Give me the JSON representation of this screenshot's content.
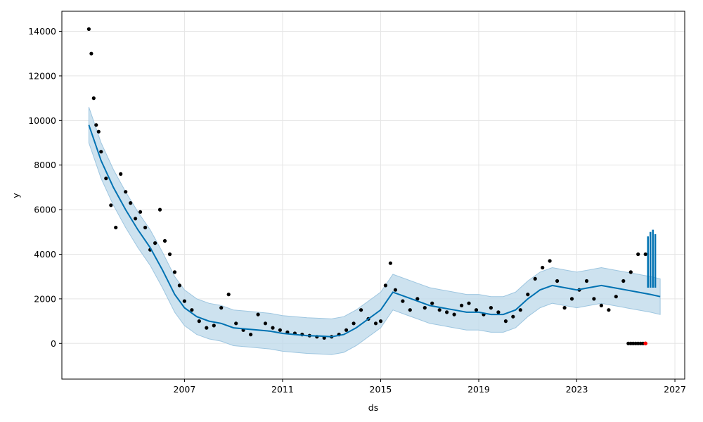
{
  "chart_data": {
    "type": "scatter",
    "title": "",
    "xlabel": "ds",
    "ylabel": "y",
    "xlim": [
      2002.0,
      2027.4
    ],
    "ylim": [
      -1600,
      14900
    ],
    "x_ticks": [
      2007,
      2011,
      2015,
      2019,
      2023,
      2027
    ],
    "x_tick_labels": [
      "2007",
      "2011",
      "2015",
      "2019",
      "2023",
      "2027"
    ],
    "y_ticks": [
      0,
      2000,
      4000,
      6000,
      8000,
      10000,
      12000,
      14000
    ],
    "y_tick_labels": [
      "0",
      "2000",
      "4000",
      "6000",
      "8000",
      "10000",
      "12000",
      "14000"
    ],
    "grid": true,
    "legend": "none",
    "colors": {
      "observed": "#000000",
      "forecast": "#0072b2",
      "interval": "#bcd8ea",
      "highlight": "#ff0000",
      "grid": "#e5e5e5"
    },
    "series": [
      {
        "type": "scatter",
        "x": [
          2003.1,
          2003.2,
          2003.3,
          2003.4,
          2003.5,
          2003.6,
          2003.8,
          2004.0,
          2004.2,
          2004.4,
          2004.6,
          2004.8,
          2005.0,
          2005.2,
          2005.4,
          2005.6,
          2005.8,
          2006.0,
          2006.2,
          2006.4,
          2006.6,
          2006.8,
          2007.0,
          2007.3,
          2007.6,
          2007.9,
          2008.2,
          2008.5,
          2008.8,
          2009.1,
          2009.4,
          2009.7,
          2010.0,
          2010.3,
          2010.6,
          2010.9,
          2011.2,
          2011.5,
          2011.8,
          2012.1,
          2012.4,
          2012.7,
          2013.0,
          2013.3,
          2013.6,
          2013.9,
          2014.2,
          2014.5,
          2014.8,
          2015.0,
          2015.2,
          2015.4,
          2015.6,
          2015.9,
          2016.2,
          2016.5,
          2016.8,
          2017.1,
          2017.4,
          2017.7,
          2018.0,
          2018.3,
          2018.6,
          2018.9,
          2019.2,
          2019.5,
          2019.8,
          2020.1,
          2020.4,
          2020.7,
          2021.0,
          2021.3,
          2021.6,
          2021.9,
          2022.2,
          2022.5,
          2022.8,
          2023.1,
          2023.4,
          2023.7,
          2024.0,
          2024.3,
          2024.6,
          2024.9,
          2025.2,
          2025.5,
          2025.8
        ],
        "y": [
          14100,
          13000,
          11000,
          9800,
          9500,
          8600,
          7400,
          6200,
          5200,
          7600,
          6800,
          6300,
          5600,
          5900,
          5200,
          4200,
          4500,
          6000,
          4600,
          4000,
          3200,
          2600,
          1900,
          1500,
          1000,
          700,
          800,
          1600,
          2200,
          900,
          600,
          400,
          1300,
          900,
          700,
          600,
          500,
          450,
          400,
          350,
          300,
          250,
          300,
          400,
          600,
          900,
          1500,
          1100,
          900,
          1000,
          2600,
          3600,
          2400,
          1900,
          1500,
          2000,
          1600,
          1800,
          1500,
          1400,
          1300,
          1700,
          1800,
          1500,
          1300,
          1600,
          1400,
          1000,
          1200,
          1500,
          2200,
          2900,
          3400,
          3700,
          2800,
          1600,
          2000,
          2400,
          2800,
          2000,
          1700,
          1500,
          2100,
          2800,
          3200,
          4000,
          4000
        ]
      },
      {
        "type": "line",
        "name": "",
        "x": [
          2003.1,
          2003.6,
          2004.1,
          2004.6,
          2005.1,
          2005.6,
          2006.1,
          2006.6,
          2007.0,
          2007.5,
          2008.0,
          2008.5,
          2009.0,
          2009.5,
          2010.0,
          2010.5,
          2011.0,
          2011.5,
          2012.0,
          2012.5,
          2013.0,
          2013.5,
          2014.0,
          2014.5,
          2015.0,
          2015.5,
          2016.0,
          2016.5,
          2017.0,
          2017.5,
          2018.0,
          2018.5,
          2019.0,
          2019.5,
          2020.0,
          2020.5,
          2021.0,
          2021.5,
          2022.0,
          2022.5,
          2023.0,
          2023.5,
          2024.0,
          2024.5,
          2025.0,
          2025.5,
          2026.0,
          2026.4
        ],
        "y": [
          9800,
          8200,
          7000,
          6000,
          5100,
          4300,
          3300,
          2200,
          1600,
          1200,
          1000,
          900,
          700,
          650,
          600,
          550,
          450,
          400,
          350,
          330,
          300,
          400,
          700,
          1100,
          1500,
          2300,
          2100,
          1900,
          1700,
          1600,
          1500,
          1400,
          1400,
          1300,
          1300,
          1500,
          2000,
          2400,
          2600,
          2500,
          2400,
          2500,
          2600,
          2500,
          2400,
          2300,
          2200,
          2100
        ]
      },
      {
        "type": "area",
        "name": "",
        "x": [
          2003.1,
          2003.6,
          2004.1,
          2004.6,
          2005.1,
          2005.6,
          2006.1,
          2006.6,
          2007.0,
          2007.5,
          2008.0,
          2008.5,
          2009.0,
          2009.5,
          2010.0,
          2010.5,
          2011.0,
          2011.5,
          2012.0,
          2012.5,
          2013.0,
          2013.5,
          2014.0,
          2014.5,
          2015.0,
          2015.5,
          2016.0,
          2016.5,
          2017.0,
          2017.5,
          2018.0,
          2018.5,
          2019.0,
          2019.5,
          2020.0,
          2020.5,
          2021.0,
          2021.5,
          2022.0,
          2022.5,
          2023.0,
          2023.5,
          2024.0,
          2024.5,
          2025.0,
          2025.5,
          2026.0,
          2026.4
        ],
        "lower": [
          9000,
          7400,
          6200,
          5200,
          4300,
          3500,
          2500,
          1400,
          800,
          400,
          200,
          100,
          -100,
          -150,
          -200,
          -250,
          -350,
          -400,
          -450,
          -470,
          -500,
          -400,
          -100,
          300,
          700,
          1500,
          1300,
          1100,
          900,
          800,
          700,
          600,
          600,
          500,
          500,
          700,
          1200,
          1600,
          1800,
          1700,
          1600,
          1700,
          1800,
          1700,
          1600,
          1500,
          1400,
          1300
        ],
        "upper": [
          10600,
          9000,
          7800,
          6800,
          5900,
          5100,
          4100,
          3000,
          2400,
          2000,
          1800,
          1700,
          1500,
          1450,
          1400,
          1350,
          1250,
          1200,
          1150,
          1130,
          1100,
          1200,
          1500,
          1900,
          2300,
          3100,
          2900,
          2700,
          2500,
          2400,
          2300,
          2200,
          2200,
          2100,
          2100,
          2300,
          2800,
          3200,
          3400,
          3300,
          3200,
          3300,
          3400,
          3300,
          3200,
          3100,
          3000,
          2900
        ]
      },
      {
        "type": "scatter",
        "name": "",
        "x": [
          2025.1,
          2025.2,
          2025.3,
          2025.4,
          2025.5,
          2025.6,
          2025.7
        ],
        "y": [
          0,
          0,
          0,
          0,
          0,
          0,
          0
        ]
      },
      {
        "type": "line",
        "name": "",
        "x": [
          2025.9,
          2026.0,
          2026.1,
          2026.2,
          2026.3
        ],
        "y": [
          4800,
          5000,
          5100,
          4900,
          2500
        ]
      }
    ]
  }
}
